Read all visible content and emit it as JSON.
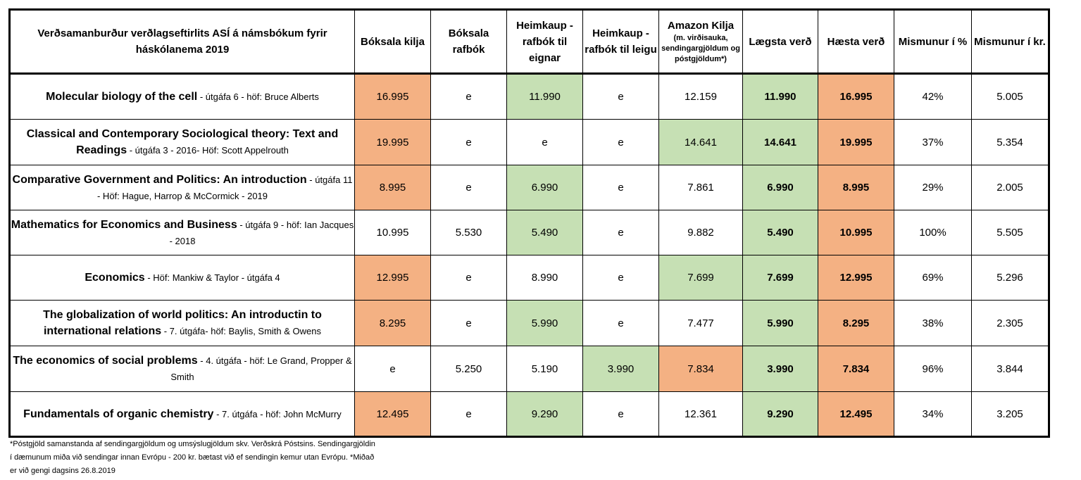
{
  "colors": {
    "high": "#f4b183",
    "low": "#c6e0b4",
    "border": "#000000"
  },
  "header": {
    "title": "Verðsamanburður verðlagseftirlits ASÍ á námsbókum fyrir háskólanema 2019",
    "columns": [
      "Bóksala kilja",
      "Bóksala rafbók",
      "Heimkaup - rafbók til eignar",
      "Heimkaup - rafbók til leigu",
      "Amazon Kilja",
      "Lægsta verð",
      "Hæsta verð",
      "Mismunur í %",
      "Mismunur í kr."
    ],
    "amazon_note": "(m. virðisauka, sendingargjöldum og póstgjöldum*)"
  },
  "rows": [
    {
      "title": "Molecular biology of the cell",
      "details": " - útgáfa 6 - höf: Bruce Alberts",
      "cells": [
        "16.995",
        "e",
        "11.990",
        "e",
        "12.159",
        "11.990",
        "16.995",
        "42%",
        "5.005"
      ],
      "colors": [
        "high",
        "",
        "low",
        "",
        "",
        "low",
        "high",
        "",
        ""
      ]
    },
    {
      "title": "Classical and Contemporary Sociological theory: Text and Readings",
      "details": " - útgáfa 3 - 2016- Höf: Scott Appelrouth",
      "cells": [
        "19.995",
        "e",
        "e",
        "e",
        "14.641",
        "14.641",
        "19.995",
        "37%",
        "5.354"
      ],
      "colors": [
        "high",
        "",
        "",
        "",
        "low",
        "low",
        "high",
        "",
        ""
      ]
    },
    {
      "title": "Comparative Government and Politics: An introduction",
      "details": " - útgáfa 11 - Höf: Hague, Harrop & McCormick - 2019",
      "cells": [
        "8.995",
        "e",
        "6.990",
        "e",
        "7.861",
        "6.990",
        "8.995",
        "29%",
        "2.005"
      ],
      "colors": [
        "high",
        "",
        "low",
        "",
        "",
        "low",
        "high",
        "",
        ""
      ]
    },
    {
      "title": "Mathematics for Economics and Business",
      "details": " - útgáfa 9 - höf: Ian Jacques - 2018",
      "cells": [
        "10.995",
        "5.530",
        "5.490",
        "e",
        "9.882",
        "5.490",
        "10.995",
        "100%",
        "5.505"
      ],
      "colors": [
        "",
        "",
        "low",
        "",
        "",
        "low",
        "high",
        "",
        ""
      ]
    },
    {
      "title": "Economics",
      "details": " - Höf: Mankiw & Taylor - útgáfa 4",
      "cells": [
        "12.995",
        "e",
        "8.990",
        "e",
        "7.699",
        "7.699",
        "12.995",
        "69%",
        "5.296"
      ],
      "colors": [
        "high",
        "",
        "",
        "",
        "low",
        "low",
        "high",
        "",
        ""
      ]
    },
    {
      "title": "The globalization of world politics: An introductin to international relations",
      "details": " - 7. útgáfa- höf: Baylis, Smith & Owens",
      "cells": [
        "8.295",
        "e",
        "5.990",
        "e",
        "7.477",
        "5.990",
        "8.295",
        "38%",
        "2.305"
      ],
      "colors": [
        "high",
        "",
        "low",
        "",
        "",
        "low",
        "high",
        "",
        ""
      ]
    },
    {
      "title": "The economics of social problems",
      "details": " - 4. útgáfa - höf: Le Grand, Propper & Smith",
      "cells": [
        "e",
        "5.250",
        "5.190",
        "3.990",
        "7.834",
        "3.990",
        "7.834",
        "96%",
        "3.844"
      ],
      "colors": [
        "",
        "",
        "",
        "low",
        "high",
        "low",
        "high",
        "",
        ""
      ]
    },
    {
      "title": "Fundamentals of organic chemistry",
      "details": " - 7. útgáfa - höf: John McMurry",
      "cells": [
        "12.495",
        "e",
        "9.290",
        "e",
        "12.361",
        "9.290",
        "12.495",
        "34%",
        "3.205"
      ],
      "colors": [
        "high",
        "",
        "low",
        "",
        "",
        "low",
        "high",
        "",
        ""
      ]
    }
  ],
  "footnote": "*Póstgjöld samanstanda af sendingargjöldum og umsýslugjöldum skv. Verðskrá Póstsins. Sendingargjöldin í dæmunum miða við sendingar innan Evrópu - 200 kr. bætast við ef sendingin kemur utan Evrópu. *Miðað er við  gengi dagsins 26.8.2019"
}
